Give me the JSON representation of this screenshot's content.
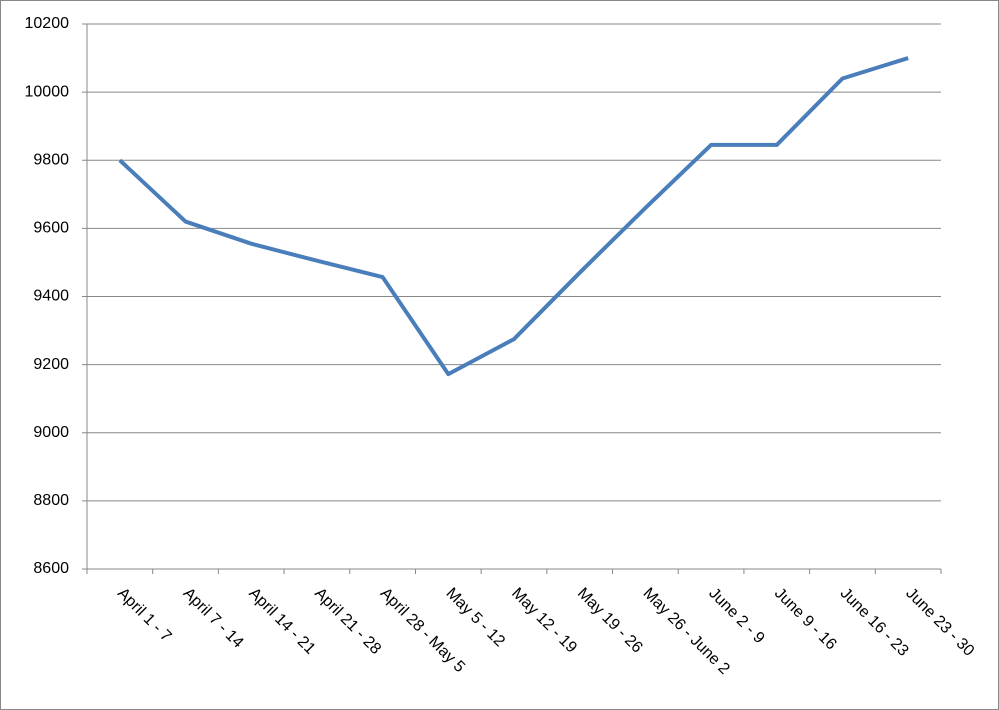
{
  "chart_data": {
    "type": "line",
    "categories": [
      "April 1 - 7",
      "April 7 - 14",
      "April 14 - 21",
      "April 21 - 28",
      "April 28 - May 5",
      "May 5 - 12",
      "May 12 - 19",
      "May 19 - 26",
      "May 26 - June 2",
      "June 2 - 9",
      "June 9 - 16",
      "June 16 - 23",
      "June 23 - 30"
    ],
    "values": [
      9800,
      9620,
      9555,
      9505,
      9457,
      9172,
      9275,
      9470,
      9660,
      9845,
      9845,
      10040,
      10100
    ],
    "color": "#4a7ebb",
    "ylim": [
      8600,
      10200
    ],
    "yticks": [
      8600,
      8800,
      9000,
      9200,
      9400,
      9600,
      9800,
      10000,
      10200
    ],
    "grid": true
  }
}
